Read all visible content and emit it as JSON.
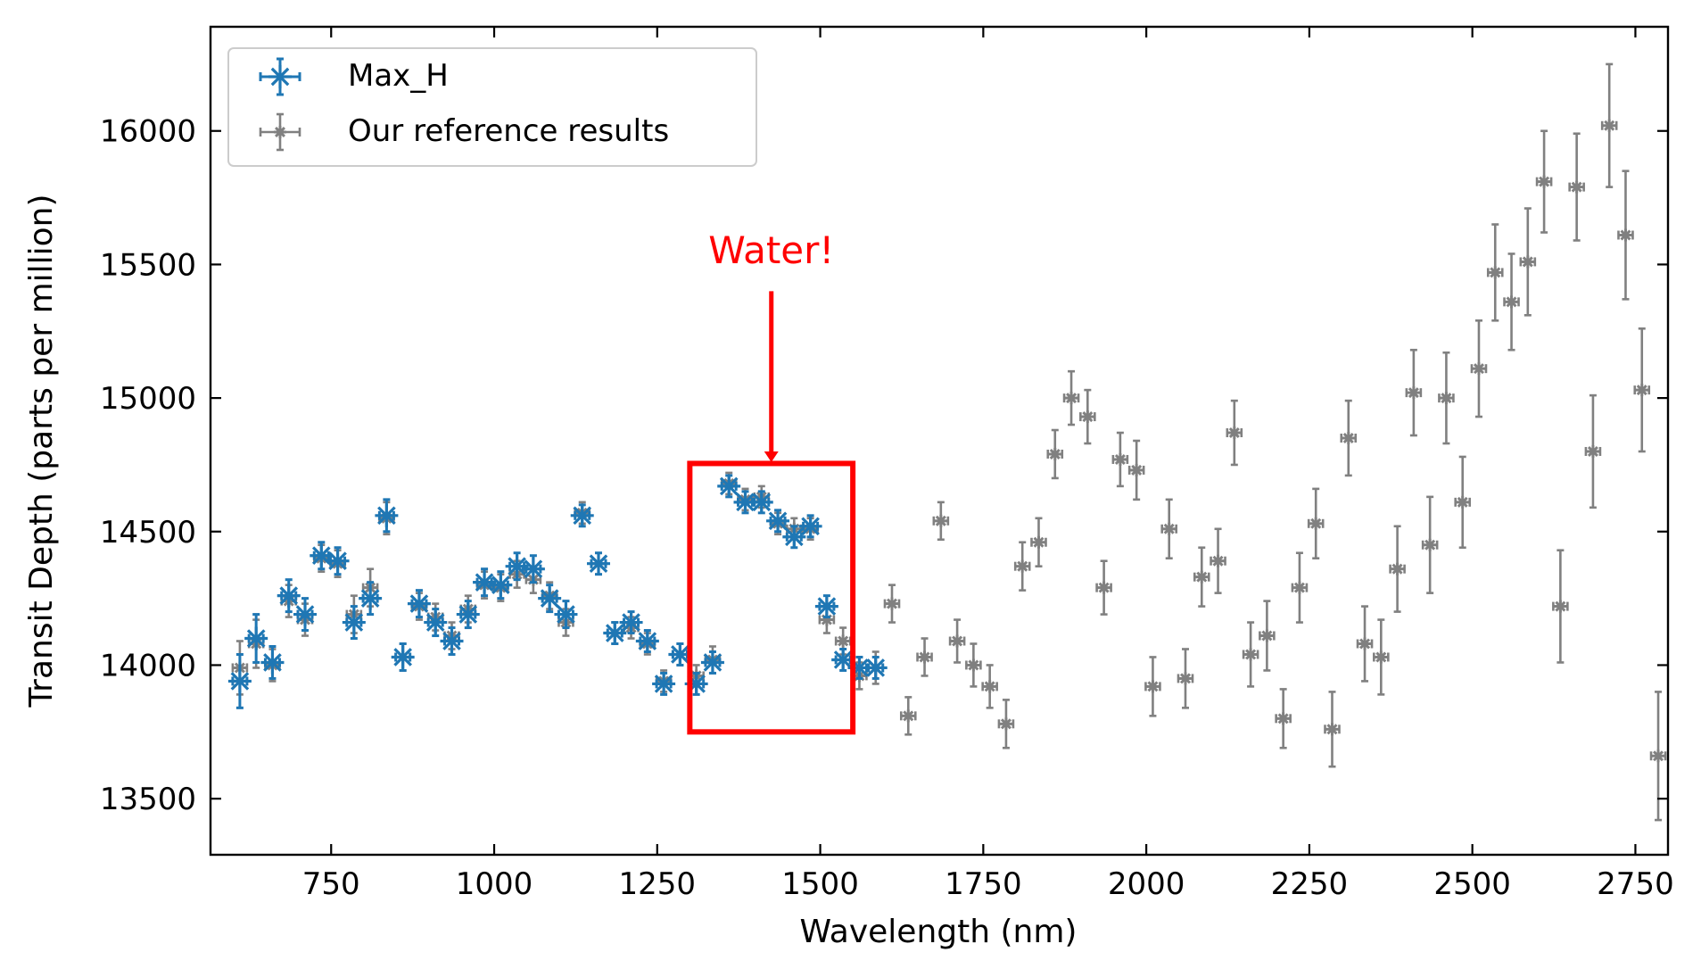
{
  "chart_data": {
    "type": "scatter",
    "title": "",
    "xlabel": "Wavelength (nm)",
    "ylabel": "Transit Depth (parts per million)",
    "xlim": [
      565,
      2800
    ],
    "ylim": [
      13290,
      16390
    ],
    "xticks": [
      750,
      1000,
      1250,
      1500,
      1750,
      2000,
      2250,
      2500,
      2750
    ],
    "yticks": [
      13500,
      14000,
      14500,
      15000,
      15500,
      16000
    ],
    "grid": false,
    "legend_position": "upper-left",
    "series": [
      {
        "name": "Max_H",
        "color": "#1f77b4",
        "marker": "asterisk",
        "points": [
          [
            610,
            13940,
            100
          ],
          [
            635,
            14100,
            90
          ],
          [
            660,
            14010,
            60
          ],
          [
            685,
            14260,
            60
          ],
          [
            710,
            14190,
            60
          ],
          [
            735,
            14410,
            50
          ],
          [
            760,
            14390,
            50
          ],
          [
            785,
            14160,
            60
          ],
          [
            810,
            14250,
            60
          ],
          [
            835,
            14560,
            60
          ],
          [
            860,
            14030,
            50
          ],
          [
            885,
            14230,
            50
          ],
          [
            910,
            14160,
            50
          ],
          [
            935,
            14090,
            50
          ],
          [
            960,
            14190,
            50
          ],
          [
            985,
            14310,
            50
          ],
          [
            1010,
            14300,
            50
          ],
          [
            1035,
            14370,
            50
          ],
          [
            1060,
            14360,
            50
          ],
          [
            1085,
            14250,
            50
          ],
          [
            1110,
            14190,
            50
          ],
          [
            1135,
            14560,
            40
          ],
          [
            1160,
            14380,
            40
          ],
          [
            1185,
            14120,
            40
          ],
          [
            1210,
            14160,
            40
          ],
          [
            1235,
            14090,
            40
          ],
          [
            1260,
            13930,
            40
          ],
          [
            1285,
            14040,
            40
          ],
          [
            1310,
            13930,
            40
          ],
          [
            1335,
            14010,
            40
          ],
          [
            1360,
            14670,
            40
          ],
          [
            1385,
            14610,
            40
          ],
          [
            1410,
            14610,
            40
          ],
          [
            1435,
            14540,
            40
          ],
          [
            1460,
            14480,
            40
          ],
          [
            1485,
            14520,
            40
          ],
          [
            1510,
            14220,
            40
          ],
          [
            1535,
            14020,
            40
          ],
          [
            1560,
            13990,
            40
          ],
          [
            1585,
            13990,
            40
          ]
        ]
      },
      {
        "name": "Our reference results",
        "color": "#808080",
        "marker": "asterisk",
        "points": [
          [
            610,
            13990,
            100
          ],
          [
            635,
            14080,
            90
          ],
          [
            660,
            14000,
            60
          ],
          [
            685,
            14240,
            60
          ],
          [
            710,
            14170,
            60
          ],
          [
            735,
            14400,
            50
          ],
          [
            760,
            14380,
            50
          ],
          [
            785,
            14190,
            70
          ],
          [
            810,
            14290,
            70
          ],
          [
            835,
            14550,
            60
          ],
          [
            860,
            14030,
            50
          ],
          [
            885,
            14220,
            50
          ],
          [
            910,
            14180,
            50
          ],
          [
            935,
            14110,
            50
          ],
          [
            960,
            14210,
            50
          ],
          [
            985,
            14300,
            50
          ],
          [
            1010,
            14290,
            50
          ],
          [
            1035,
            14340,
            50
          ],
          [
            1060,
            14320,
            50
          ],
          [
            1085,
            14260,
            50
          ],
          [
            1110,
            14160,
            50
          ],
          [
            1135,
            14570,
            40
          ],
          [
            1160,
            14380,
            40
          ],
          [
            1185,
            14120,
            40
          ],
          [
            1210,
            14140,
            40
          ],
          [
            1235,
            14080,
            40
          ],
          [
            1260,
            13940,
            40
          ],
          [
            1285,
            14040,
            40
          ],
          [
            1310,
            13960,
            40
          ],
          [
            1335,
            14020,
            50
          ],
          [
            1360,
            14680,
            40
          ],
          [
            1385,
            14620,
            40
          ],
          [
            1410,
            14630,
            40
          ],
          [
            1435,
            14530,
            40
          ],
          [
            1460,
            14510,
            40
          ],
          [
            1485,
            14510,
            40
          ],
          [
            1510,
            14170,
            50
          ],
          [
            1535,
            14090,
            50
          ],
          [
            1560,
            13960,
            50
          ],
          [
            1585,
            13990,
            60
          ],
          [
            1610,
            14230,
            70
          ],
          [
            1635,
            13810,
            70
          ],
          [
            1660,
            14030,
            70
          ],
          [
            1685,
            14540,
            70
          ],
          [
            1710,
            14090,
            80
          ],
          [
            1735,
            14000,
            80
          ],
          [
            1760,
            13920,
            80
          ],
          [
            1785,
            13780,
            90
          ],
          [
            1810,
            14370,
            90
          ],
          [
            1835,
            14460,
            90
          ],
          [
            1860,
            14790,
            90
          ],
          [
            1885,
            15000,
            100
          ],
          [
            1910,
            14930,
            100
          ],
          [
            1935,
            14290,
            100
          ],
          [
            1960,
            14770,
            100
          ],
          [
            1985,
            14730,
            110
          ],
          [
            2010,
            13920,
            110
          ],
          [
            2035,
            14510,
            110
          ],
          [
            2060,
            13950,
            110
          ],
          [
            2085,
            14330,
            110
          ],
          [
            2110,
            14390,
            120
          ],
          [
            2135,
            14870,
            120
          ],
          [
            2160,
            14040,
            120
          ],
          [
            2185,
            14110,
            130
          ],
          [
            2210,
            13800,
            110
          ],
          [
            2235,
            14290,
            130
          ],
          [
            2260,
            14530,
            130
          ],
          [
            2285,
            13760,
            140
          ],
          [
            2310,
            14850,
            140
          ],
          [
            2335,
            14080,
            140
          ],
          [
            2360,
            14030,
            140
          ],
          [
            2385,
            14360,
            160
          ],
          [
            2410,
            15020,
            160
          ],
          [
            2435,
            14450,
            180
          ],
          [
            2460,
            15000,
            170
          ],
          [
            2485,
            14610,
            170
          ],
          [
            2510,
            15110,
            180
          ],
          [
            2535,
            15470,
            180
          ],
          [
            2560,
            15360,
            180
          ],
          [
            2585,
            15510,
            200
          ],
          [
            2610,
            15810,
            190
          ],
          [
            2635,
            14220,
            210
          ],
          [
            2660,
            15790,
            200
          ],
          [
            2685,
            14800,
            210
          ],
          [
            2710,
            16020,
            230
          ],
          [
            2735,
            15610,
            240
          ],
          [
            2760,
            15030,
            230
          ],
          [
            2785,
            13660,
            240
          ]
        ]
      }
    ],
    "annotations": [
      {
        "text": "Water!",
        "color": "#ff0000",
        "text_position": [
          1425,
          15505
        ],
        "arrow_from": [
          1425,
          15400
        ],
        "arrow_to": [
          1425,
          14760
        ],
        "box": {
          "x0": 1300,
          "x1": 1550,
          "y0": 13750,
          "y1": 14755
        }
      }
    ]
  }
}
